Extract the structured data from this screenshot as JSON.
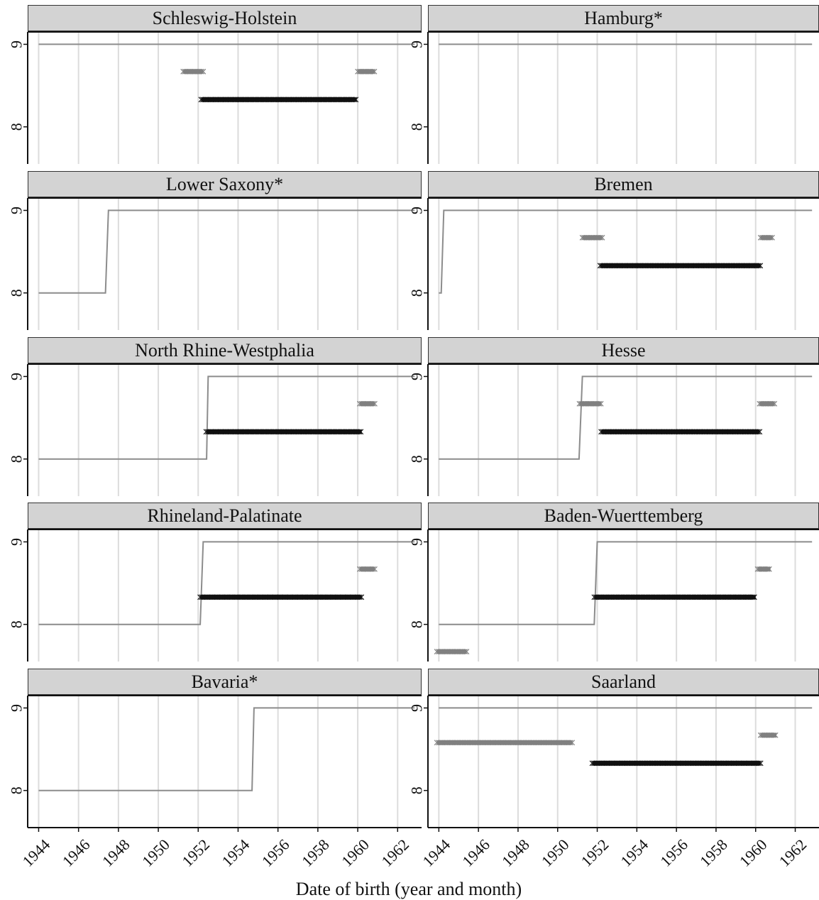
{
  "chart_data": {
    "type": "line",
    "xlabel": "Date of birth (year and month)",
    "ylabel": "",
    "xlim": [
      1943.45,
      1963.2
    ],
    "ylim": [
      7.55,
      9.15
    ],
    "x_ticks": [
      1944,
      1946,
      1948,
      1950,
      1952,
      1954,
      1956,
      1958,
      1960,
      1962
    ],
    "y_ticks": [
      8,
      9
    ],
    "grid": "vertical",
    "layout": "2 columns x 5 rows",
    "colors": {
      "step_line": "#8c8c8c",
      "segment_dark": "#111111",
      "segment_gray": "#808080",
      "strip_bg": "#d3d3d3",
      "grid": "#dcdcdc"
    },
    "panels": [
      {
        "title": "Schleswig-Holstein",
        "step_line": [
          [
            1944.0,
            9
          ],
          [
            1962.85,
            9
          ]
        ],
        "segments_gray": [
          {
            "x0": 1951.25,
            "x1": 1952.25,
            "y": 8.67
          },
          {
            "x0": 1960.0,
            "x1": 1960.85,
            "y": 8.67
          }
        ],
        "segments_dark": [
          {
            "x0": 1952.15,
            "x1": 1959.95,
            "y": 8.33
          }
        ]
      },
      {
        "title": "Hamburg*",
        "step_line": [
          [
            1944.0,
            9
          ],
          [
            1962.85,
            9
          ]
        ],
        "segments_gray": [],
        "segments_dark": []
      },
      {
        "title": "Lower Saxony*",
        "step_line": [
          [
            1944.0,
            8
          ],
          [
            1947.35,
            8
          ],
          [
            1947.5,
            9
          ],
          [
            1962.85,
            9
          ]
        ],
        "segments_gray": [],
        "segments_dark": []
      },
      {
        "title": "Bremen",
        "step_line": [
          [
            1944.0,
            8
          ],
          [
            1944.12,
            8
          ],
          [
            1944.25,
            9
          ],
          [
            1962.85,
            9
          ]
        ],
        "segments_gray": [
          {
            "x0": 1951.25,
            "x1": 1952.25,
            "y": 8.67
          },
          {
            "x0": 1960.25,
            "x1": 1960.85,
            "y": 8.67
          }
        ],
        "segments_dark": [
          {
            "x0": 1952.15,
            "x1": 1960.25,
            "y": 8.33
          }
        ]
      },
      {
        "title": "North Rhine-Westphalia",
        "step_line": [
          [
            1944.0,
            8
          ],
          [
            1952.42,
            8
          ],
          [
            1952.5,
            9
          ],
          [
            1962.85,
            9
          ]
        ],
        "segments_gray": [
          {
            "x0": 1960.1,
            "x1": 1960.85,
            "y": 8.67
          }
        ],
        "segments_dark": [
          {
            "x0": 1952.4,
            "x1": 1960.2,
            "y": 8.33
          }
        ]
      },
      {
        "title": "Hesse",
        "step_line": [
          [
            1944.0,
            8
          ],
          [
            1951.08,
            8
          ],
          [
            1951.25,
            9
          ],
          [
            1962.85,
            9
          ]
        ],
        "segments_gray": [
          {
            "x0": 1951.1,
            "x1": 1952.2,
            "y": 8.67
          },
          {
            "x0": 1960.2,
            "x1": 1960.95,
            "y": 8.67
          }
        ],
        "segments_dark": [
          {
            "x0": 1952.2,
            "x1": 1960.2,
            "y": 8.33
          }
        ]
      },
      {
        "title": "Rhineland-Palatinate",
        "step_line": [
          [
            1944.0,
            8
          ],
          [
            1952.1,
            8
          ],
          [
            1952.25,
            9
          ],
          [
            1962.85,
            9
          ]
        ],
        "segments_gray": [
          {
            "x0": 1960.1,
            "x1": 1960.85,
            "y": 8.67
          }
        ],
        "segments_dark": [
          {
            "x0": 1952.1,
            "x1": 1960.2,
            "y": 8.33
          }
        ]
      },
      {
        "title": "Baden-Wuerttemberg",
        "step_line": [
          [
            1944.0,
            8
          ],
          [
            1951.85,
            8
          ],
          [
            1952.0,
            9
          ],
          [
            1962.85,
            9
          ]
        ],
        "segments_gray": [
          {
            "x0": 1943.9,
            "x1": 1945.4,
            "y": 7.67
          },
          {
            "x0": 1960.1,
            "x1": 1960.75,
            "y": 8.67
          }
        ],
        "segments_dark": [
          {
            "x0": 1951.85,
            "x1": 1960.0,
            "y": 8.33
          }
        ]
      },
      {
        "title": "Bavaria*",
        "step_line": [
          [
            1944.0,
            8
          ],
          [
            1954.7,
            8
          ],
          [
            1954.8,
            9
          ],
          [
            1962.85,
            9
          ]
        ],
        "segments_gray": [],
        "segments_dark": []
      },
      {
        "title": "Saarland",
        "step_line": [
          [
            1944.0,
            9
          ],
          [
            1962.85,
            9
          ]
        ],
        "segments_gray": [
          {
            "x0": 1943.9,
            "x1": 1950.75,
            "y": 8.58
          },
          {
            "x0": 1960.25,
            "x1": 1961.05,
            "y": 8.67
          }
        ],
        "segments_dark": [
          {
            "x0": 1951.75,
            "x1": 1960.25,
            "y": 8.33
          }
        ]
      }
    ]
  }
}
